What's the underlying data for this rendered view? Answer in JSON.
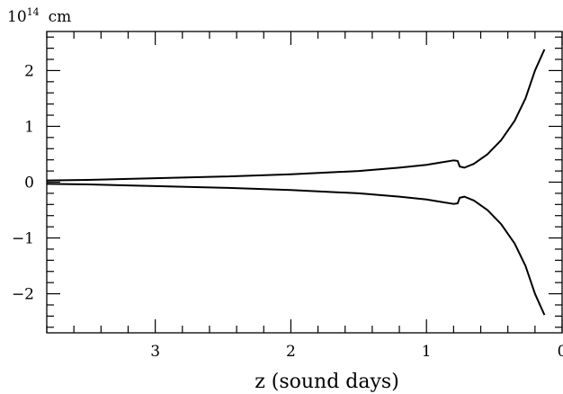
{
  "chart_data": {
    "type": "line",
    "title": "",
    "unit_label": {
      "base": "10",
      "exponent": "14",
      "unit": "cm"
    },
    "xlabel": "z (sound days)",
    "ylabel": "",
    "xlim": [
      3.8,
      0.0
    ],
    "ylim": [
      -2.7,
      2.7
    ],
    "x_reversed": true,
    "x_ticks": [
      3,
      2,
      1,
      0
    ],
    "y_ticks": [
      -2,
      -1,
      0,
      1,
      2
    ],
    "x_minor_step": 0.2,
    "y_minor_step": 0.2,
    "grid": false,
    "legend": "none",
    "series": [
      {
        "points": [
          [
            3.8,
            0.03
          ],
          [
            3.5,
            0.04
          ],
          [
            3.0,
            0.07
          ],
          [
            2.5,
            0.1
          ],
          [
            2.0,
            0.14
          ],
          [
            1.5,
            0.2
          ],
          [
            1.2,
            0.26
          ],
          [
            1.0,
            0.31
          ],
          [
            0.9,
            0.35
          ],
          [
            0.8,
            0.39
          ],
          [
            0.77,
            0.38
          ],
          [
            0.755,
            0.28
          ],
          [
            0.72,
            0.26
          ],
          [
            0.65,
            0.33
          ],
          [
            0.55,
            0.5
          ],
          [
            0.45,
            0.75
          ],
          [
            0.35,
            1.1
          ],
          [
            0.27,
            1.5
          ],
          [
            0.2,
            2.0
          ],
          [
            0.13,
            2.38
          ]
        ]
      },
      {
        "points": [
          [
            3.8,
            -0.03
          ],
          [
            3.5,
            -0.04
          ],
          [
            3.0,
            -0.07
          ],
          [
            2.5,
            -0.1
          ],
          [
            2.0,
            -0.14
          ],
          [
            1.5,
            -0.2
          ],
          [
            1.2,
            -0.26
          ],
          [
            1.0,
            -0.31
          ],
          [
            0.9,
            -0.35
          ],
          [
            0.8,
            -0.39
          ],
          [
            0.77,
            -0.38
          ],
          [
            0.755,
            -0.28
          ],
          [
            0.72,
            -0.26
          ],
          [
            0.65,
            -0.33
          ],
          [
            0.55,
            -0.5
          ],
          [
            0.45,
            -0.75
          ],
          [
            0.35,
            -1.1
          ],
          [
            0.27,
            -1.5
          ],
          [
            0.2,
            -2.0
          ],
          [
            0.13,
            -2.38
          ]
        ]
      }
    ]
  }
}
